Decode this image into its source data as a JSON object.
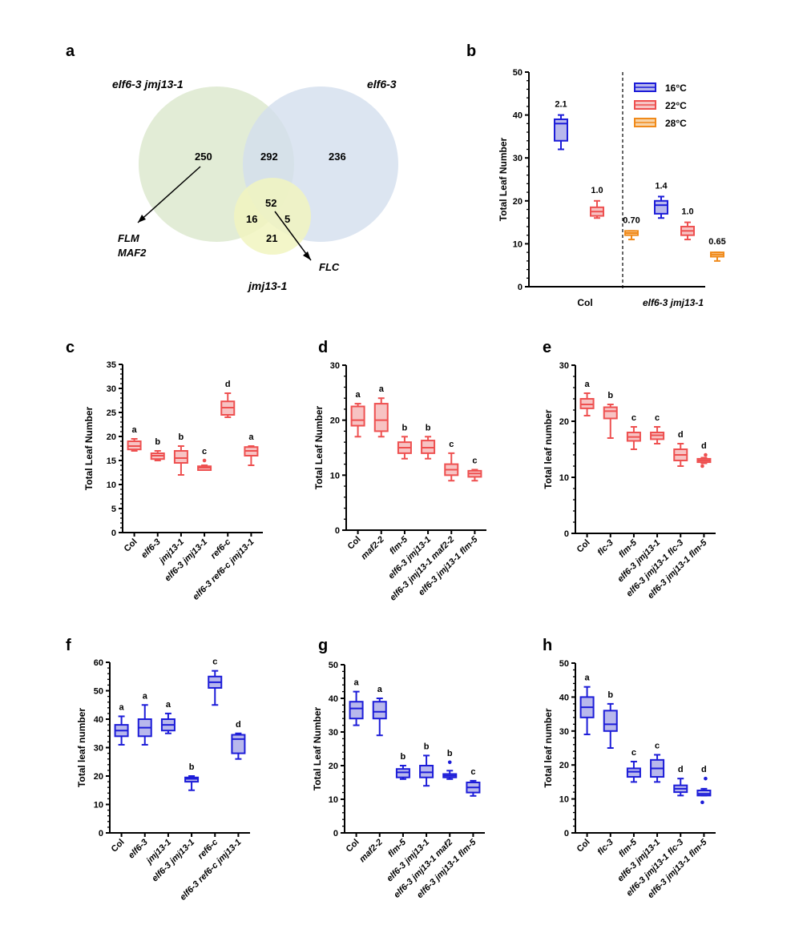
{
  "panel_labels": [
    "a",
    "b",
    "c",
    "d",
    "e",
    "f",
    "g",
    "h"
  ],
  "venn": {
    "set_labels": [
      "elf6-3 jmj13-1",
      "elf6-3",
      "jmj13-1"
    ],
    "counts": {
      "only_elf6_jmj13": "250",
      "elf6_jmj13_and_elf6": "292",
      "only_elf6": "236",
      "all_three": "52",
      "elf6_jmj13_and_jmj13": "16",
      "elf6_and_jmj13": "5",
      "only_jmj13": "21"
    },
    "gene_annotations": [
      "FLM",
      "MAF2",
      "FLC"
    ]
  },
  "colors": {
    "blue": "#1c1cd8",
    "blue_fill": "#b8b8ec",
    "red": "#ee5050",
    "red_fill": "#f7c3c3",
    "orange": "#f08a1a",
    "orange_fill": "#f8d4a8",
    "venn_green": "#dfead2",
    "venn_blue": "#d3deee",
    "venn_yellow": "#f1f4bf"
  },
  "chart_data": [
    {
      "panel": "b",
      "type": "box",
      "ylabel": "Total Leaf Number",
      "ylim": [
        0,
        50
      ],
      "yticks": [
        0,
        10,
        20,
        30,
        40,
        50
      ],
      "groups": [
        "Col",
        "elf6-3 jmj13-1"
      ],
      "legend": {
        "position": "top-right",
        "entries": [
          {
            "name": "16°C",
            "color": "blue"
          },
          {
            "name": "22°C",
            "color": "red"
          },
          {
            "name": "28°C",
            "color": "orange"
          }
        ]
      },
      "divider": "dashed vertical line between groups",
      "boxes": [
        {
          "group": "Col",
          "series": "16°C",
          "color": "blue",
          "min": 32,
          "q1": 34,
          "median": 38,
          "q3": 39,
          "max": 40,
          "label": "2.1"
        },
        {
          "group": "Col",
          "series": "22°C",
          "color": "red",
          "min": 16,
          "q1": 16.5,
          "median": 17.5,
          "q3": 18.5,
          "max": 20,
          "label": "1.0"
        },
        {
          "group": "Col",
          "series": "28°C",
          "color": "orange",
          "min": 11,
          "q1": 12,
          "median": 12.5,
          "q3": 13,
          "max": 13,
          "label": "0.70"
        },
        {
          "group": "elf6-3 jmj13-1",
          "series": "16°C",
          "color": "blue",
          "min": 16,
          "q1": 17,
          "median": 19,
          "q3": 20,
          "max": 21,
          "label": "1.4"
        },
        {
          "group": "elf6-3 jmj13-1",
          "series": "22°C",
          "color": "red",
          "min": 11,
          "q1": 12,
          "median": 13,
          "q3": 14,
          "max": 15,
          "label": "1.0"
        },
        {
          "group": "elf6-3 jmj13-1",
          "series": "28°C",
          "color": "orange",
          "min": 6,
          "q1": 7,
          "median": 7.5,
          "q3": 8,
          "max": 8,
          "label": "0.65"
        }
      ]
    },
    {
      "panel": "c",
      "type": "box",
      "ylabel": "Total Leaf Number",
      "ylim": [
        0,
        35
      ],
      "yticks": [
        0,
        5,
        10,
        15,
        20,
        25,
        30,
        35
      ],
      "color": "red",
      "categories": [
        "Col",
        "elf6-3",
        "jmj13-1",
        "elf6-3 jmj13-1",
        "ref6-c",
        "elf6-3 ref6-c jmj13-1"
      ],
      "boxes": [
        {
          "min": 17,
          "q1": 17.3,
          "median": 18,
          "q3": 19,
          "max": 19.5,
          "label": "a"
        },
        {
          "min": 15,
          "q1": 15.3,
          "median": 16,
          "q3": 16.5,
          "max": 17,
          "label": "b"
        },
        {
          "min": 12,
          "q1": 14.5,
          "median": 15.5,
          "q3": 17,
          "max": 18,
          "label": "b"
        },
        {
          "min": 13,
          "q1": 13,
          "median": 13.5,
          "q3": 13.8,
          "max": 14,
          "outliers": [
            15
          ],
          "label": "c"
        },
        {
          "min": 24,
          "q1": 24.5,
          "median": 26,
          "q3": 27.3,
          "max": 29,
          "label": "d"
        },
        {
          "min": 14,
          "q1": 16,
          "median": 17,
          "q3": 17.8,
          "max": 18,
          "label": "a"
        }
      ]
    },
    {
      "panel": "d",
      "type": "box",
      "ylabel": "Total Leaf Number",
      "ylim": [
        0,
        30
      ],
      "yticks": [
        0,
        10,
        20,
        30
      ],
      "color": "red",
      "categories": [
        "Col",
        "maf2-2",
        "flm-5",
        "elf6-3 jmj13-1",
        "elf6-3 jmj13-1 maf2-2",
        "elf6-3 jmj13-1 flm-5"
      ],
      "boxes": [
        {
          "min": 17,
          "q1": 19,
          "median": 20,
          "q3": 22.5,
          "max": 23,
          "label": "a"
        },
        {
          "min": 17,
          "q1": 18,
          "median": 20,
          "q3": 23,
          "max": 24,
          "label": "a"
        },
        {
          "min": 13,
          "q1": 14,
          "median": 15,
          "q3": 16,
          "max": 17,
          "label": "b"
        },
        {
          "min": 13,
          "q1": 14,
          "median": 15,
          "q3": 16.3,
          "max": 17,
          "label": "b"
        },
        {
          "min": 9,
          "q1": 10,
          "median": 11,
          "q3": 12,
          "max": 14,
          "label": "c"
        },
        {
          "min": 9,
          "q1": 9.7,
          "median": 10.3,
          "q3": 10.8,
          "max": 11,
          "label": "c"
        }
      ]
    },
    {
      "panel": "e",
      "type": "box",
      "ylabel": "Total leaf number",
      "ylim": [
        0,
        30
      ],
      "yticks": [
        0,
        10,
        20,
        30
      ],
      "color": "red",
      "categories": [
        "Col",
        "flc-3",
        "flm-5",
        "elf6-3 jmj13-1",
        "elf6-3 jmj13-1 flc-3",
        "elf6-3 jmj13-1 flm-5"
      ],
      "boxes": [
        {
          "min": 21,
          "q1": 22.3,
          "median": 23,
          "q3": 24,
          "max": 25,
          "label": "a"
        },
        {
          "min": 17,
          "q1": 20.5,
          "median": 21.8,
          "q3": 22.5,
          "max": 23,
          "label": "b"
        },
        {
          "min": 15,
          "q1": 16.5,
          "median": 17.2,
          "q3": 18,
          "max": 19,
          "label": "c"
        },
        {
          "min": 16,
          "q1": 16.8,
          "median": 17.5,
          "q3": 18,
          "max": 19,
          "label": "c"
        },
        {
          "min": 12,
          "q1": 13,
          "median": 14,
          "q3": 15,
          "max": 16,
          "label": "d"
        },
        {
          "min": 12.5,
          "q1": 12.7,
          "median": 13,
          "q3": 13.3,
          "max": 13.5,
          "outliers": [
            12,
            14
          ],
          "label": "d"
        }
      ]
    },
    {
      "panel": "f",
      "type": "box",
      "ylabel": "Total leaf number",
      "ylim": [
        0,
        60
      ],
      "yticks": [
        0,
        10,
        20,
        30,
        40,
        50,
        60
      ],
      "color": "blue",
      "categories": [
        "Col",
        "elf6-3",
        "jmj13-1",
        "elf6-3 jmj13-1",
        "ref6-c",
        "elf6-3 ref6-c jmj13-1"
      ],
      "boxes": [
        {
          "min": 31,
          "q1": 34,
          "median": 36,
          "q3": 38,
          "max": 41,
          "label": "a"
        },
        {
          "min": 31,
          "q1": 34,
          "median": 37,
          "q3": 40,
          "max": 45,
          "label": "a"
        },
        {
          "min": 35,
          "q1": 36,
          "median": 38,
          "q3": 40,
          "max": 42,
          "label": "a"
        },
        {
          "min": 15,
          "q1": 18,
          "median": 19,
          "q3": 19.5,
          "max": 20,
          "label": "b"
        },
        {
          "min": 45,
          "q1": 51,
          "median": 53,
          "q3": 55,
          "max": 57,
          "label": "c"
        },
        {
          "min": 26,
          "q1": 28,
          "median": 33,
          "q3": 34.5,
          "max": 35,
          "label": "d"
        }
      ]
    },
    {
      "panel": "g",
      "type": "box",
      "ylabel": "Total Leaf Number",
      "ylim": [
        0,
        50
      ],
      "yticks": [
        0,
        10,
        20,
        30,
        40,
        50
      ],
      "color": "blue",
      "categories": [
        "Col",
        "maf2-2",
        "flm-5",
        "elf6-3 jmj13-1",
        "elf6-3 jmj13-1 maf2",
        "elf6-3 jmj13-1 flm-5"
      ],
      "boxes": [
        {
          "min": 32,
          "q1": 34,
          "median": 37,
          "q3": 39,
          "max": 42,
          "label": "a"
        },
        {
          "min": 29,
          "q1": 34,
          "median": 36,
          "q3": 39,
          "max": 40,
          "label": "a"
        },
        {
          "min": 16,
          "q1": 16.5,
          "median": 18,
          "q3": 19,
          "max": 20,
          "label": "b"
        },
        {
          "min": 14,
          "q1": 16.5,
          "median": 18,
          "q3": 20,
          "max": 23,
          "label": "b"
        },
        {
          "min": 16,
          "q1": 16.5,
          "median": 17,
          "q3": 17.5,
          "max": 18.5,
          "outliers": [
            21
          ],
          "label": "b"
        },
        {
          "min": 11,
          "q1": 12,
          "median": 13.5,
          "q3": 15,
          "max": 15.5,
          "label": "c"
        }
      ]
    },
    {
      "panel": "h",
      "type": "box",
      "ylabel": "Total leaf number",
      "ylim": [
        0,
        50
      ],
      "yticks": [
        0,
        10,
        20,
        30,
        40,
        50
      ],
      "color": "blue",
      "categories": [
        "Col",
        "flc-3",
        "flm-5",
        "elf6-3 jmj13-1",
        "elf6-3 jmj13-1 flc-3",
        "elf6-3 jmj13-1 flm-5"
      ],
      "boxes": [
        {
          "min": 29,
          "q1": 34,
          "median": 37,
          "q3": 40,
          "max": 43,
          "label": "a"
        },
        {
          "min": 25,
          "q1": 30,
          "median": 32,
          "q3": 36,
          "max": 38,
          "label": "b"
        },
        {
          "min": 15,
          "q1": 16.5,
          "median": 18,
          "q3": 19,
          "max": 21,
          "label": "c"
        },
        {
          "min": 15,
          "q1": 16.5,
          "median": 19,
          "q3": 21.5,
          "max": 23,
          "label": "c"
        },
        {
          "min": 11,
          "q1": 12,
          "median": 13,
          "q3": 14,
          "max": 16,
          "label": "d"
        },
        {
          "min": 11,
          "q1": 11,
          "median": 11.5,
          "q3": 12.5,
          "max": 13,
          "outliers": [
            9,
            16
          ],
          "label": "d"
        }
      ]
    }
  ]
}
